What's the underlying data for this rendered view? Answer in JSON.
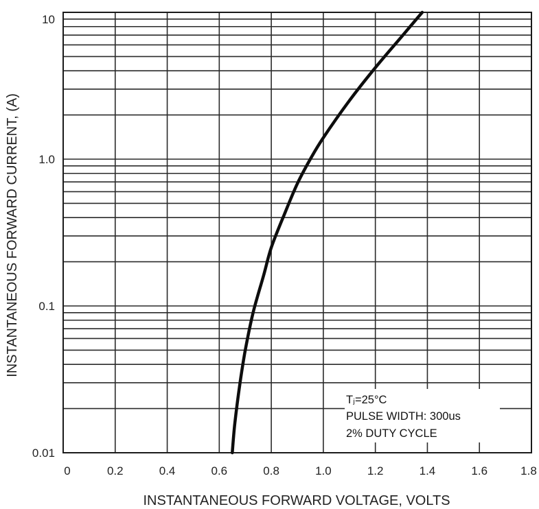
{
  "chart_data": {
    "type": "line",
    "xlabel": "INSTANTANEOUS FORWARD VOLTAGE, VOLTS",
    "ylabel": "INSTANTANEOUS FORWARD CURRENT, (A)",
    "xlim": [
      0,
      1.8
    ],
    "ylim": [
      0.01,
      10
    ],
    "yscale": "log",
    "grid": true,
    "x_ticks": [
      0,
      0.2,
      0.4,
      0.6,
      0.8,
      1.0,
      1.2,
      1.4,
      1.6,
      1.8
    ],
    "x_tick_labels": [
      "0",
      "0.2",
      "0.4",
      "0.6",
      "0.8",
      "1.0",
      "1.2",
      "1.4",
      "1.6",
      "1.8"
    ],
    "y_ticks": [
      0.01,
      0.1,
      1.0,
      10
    ],
    "y_tick_labels": [
      "0.01",
      "0.1",
      "1.0",
      "10"
    ],
    "series": [
      {
        "x": [
          0.65,
          0.66,
          0.68,
          0.7,
          0.73,
          0.77,
          0.8,
          0.85,
          0.9,
          0.95,
          1.0,
          1.1,
          1.2,
          1.3,
          1.38
        ],
        "y": [
          0.01,
          0.016,
          0.03,
          0.05,
          0.09,
          0.16,
          0.25,
          0.42,
          0.68,
          1.0,
          1.4,
          2.5,
          4.2,
          6.8,
          10.0
        ]
      }
    ],
    "annotations": [
      {
        "label": "Tⱼ=25°C",
        "position": "bottom-right"
      },
      {
        "label": "PULSE WIDTH: 300us",
        "position": "bottom-right"
      },
      {
        "label": "2% DUTY CYCLE",
        "position": "bottom-right"
      }
    ]
  }
}
